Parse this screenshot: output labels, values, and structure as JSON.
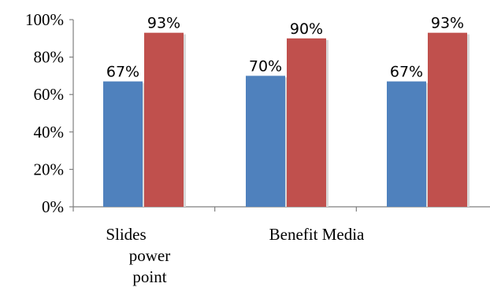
{
  "chart_data": {
    "type": "bar",
    "categories": [
      [
        "Slides",
        "power",
        "point"
      ],
      [
        "Benefit Media"
      ],
      [
        ""
      ]
    ],
    "series": [
      {
        "values": [
          67,
          70,
          67
        ],
        "color": "#4f81bd"
      },
      {
        "values": [
          93,
          90,
          93
        ],
        "color": "#c0504d"
      }
    ],
    "data_labels": [
      [
        "67%",
        "70%",
        "67%"
      ],
      [
        "93%",
        "90%",
        "93%"
      ]
    ],
    "y_tick_labels": [
      "0%",
      "20%",
      "40%",
      "60%",
      "80%",
      "100%"
    ],
    "ylim": [
      0,
      100
    ],
    "grid": false,
    "legend": "none"
  }
}
